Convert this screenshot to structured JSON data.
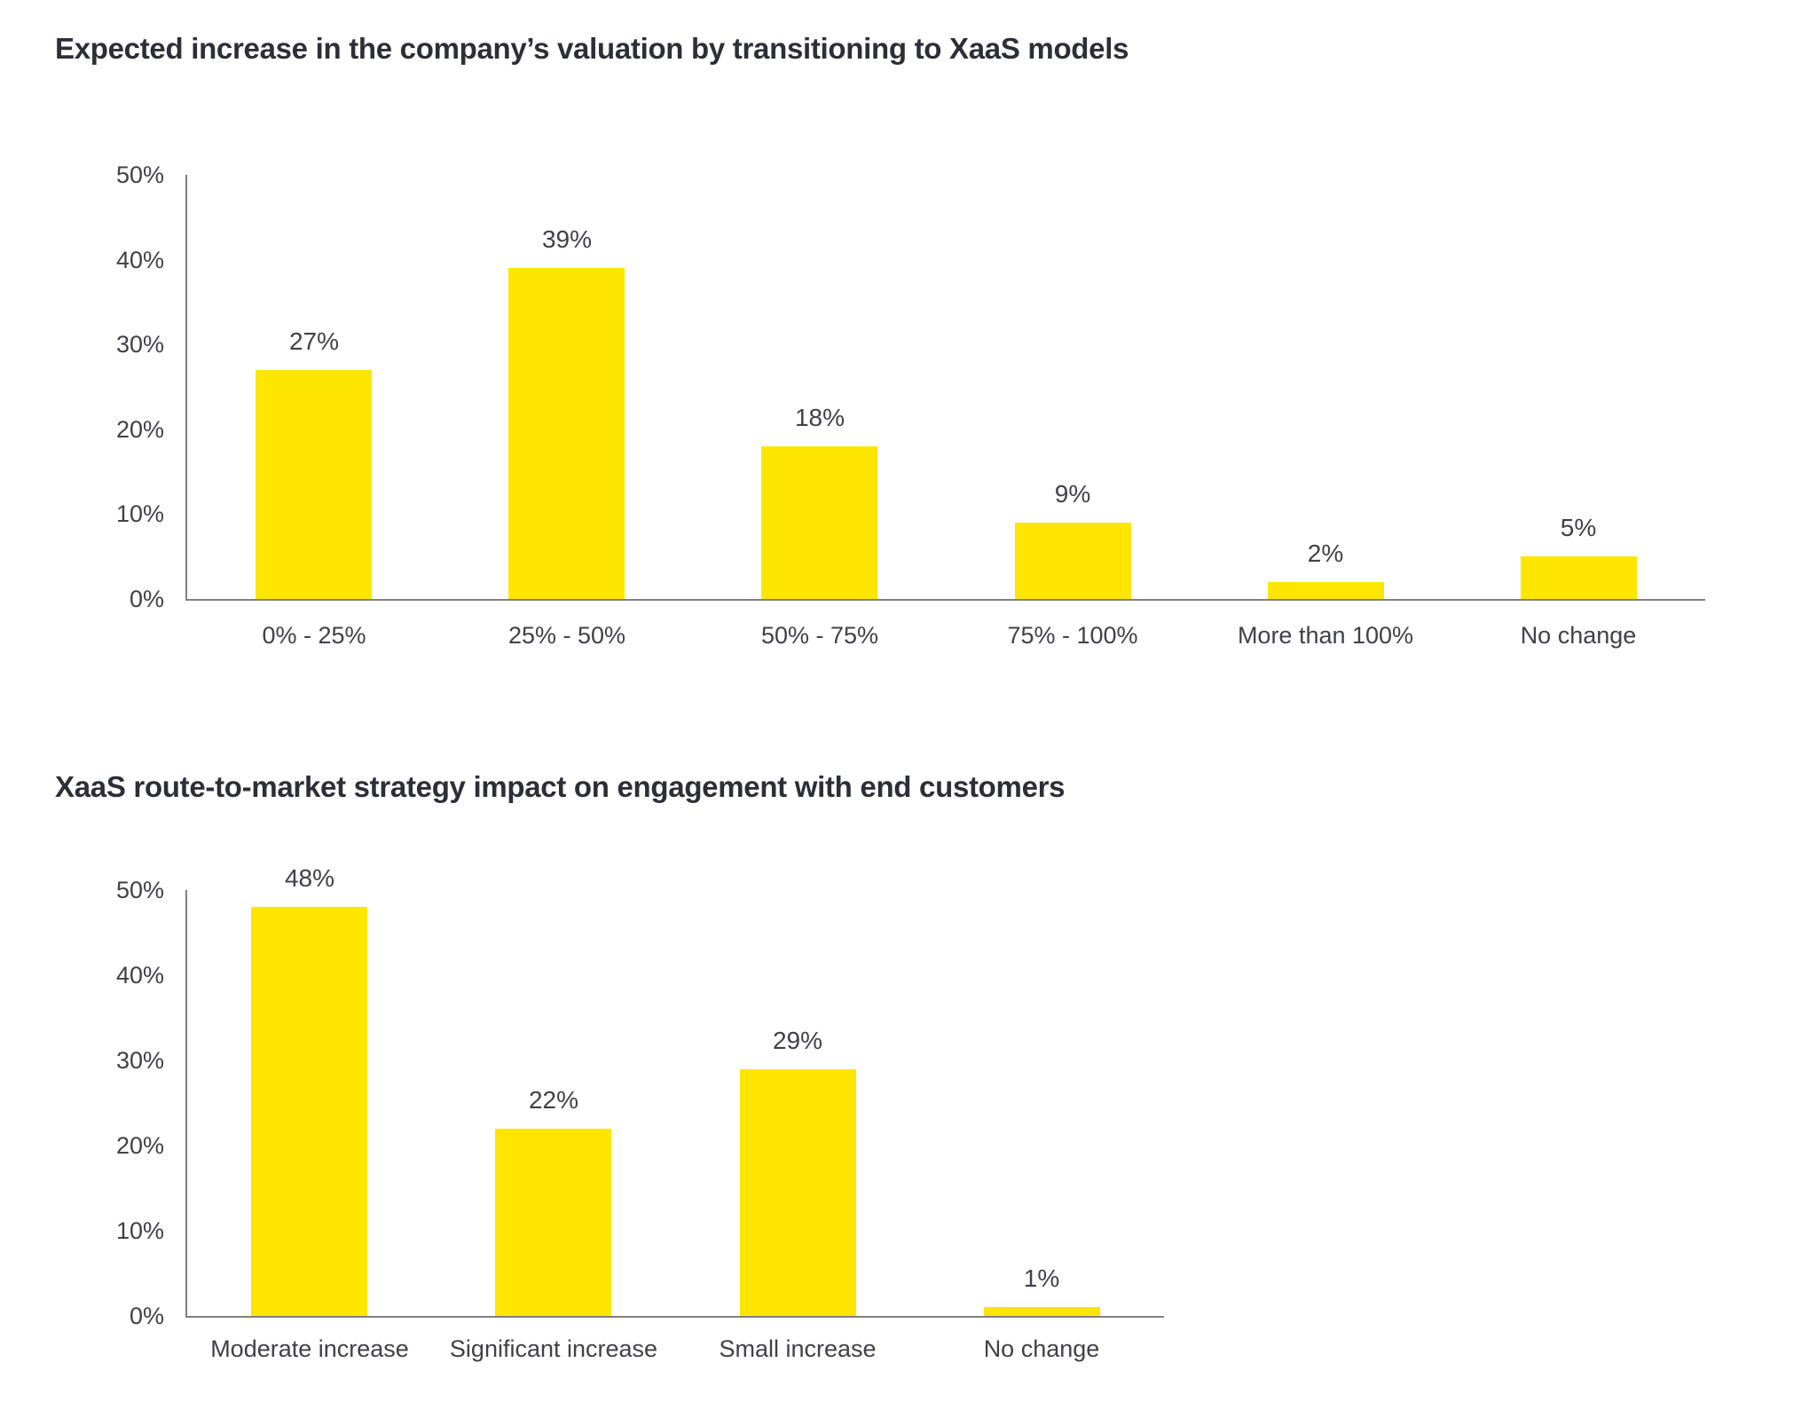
{
  "page": {
    "background": "#ffffff"
  },
  "colors": {
    "bar": "#ffe600",
    "title_text": "#2e2e38",
    "label_text": "#404049",
    "axis_line": "#808080"
  },
  "chart_data": [
    {
      "type": "bar",
      "title": "Expected increase in the company’s valuation by transitioning to XaaS models",
      "categories": [
        "0% - 25%",
        "25% - 50%",
        "50% - 75%",
        "75% - 100%",
        "More than 100%",
        "No change"
      ],
      "values": [
        27,
        39,
        18,
        9,
        2,
        5
      ],
      "value_labels": [
        "27%",
        "39%",
        "18%",
        "9%",
        "2%",
        "5%"
      ],
      "y_tick_labels": [
        "50%",
        "40%",
        "30%",
        "20%",
        "10%",
        "0%"
      ],
      "ylim": [
        0,
        50
      ],
      "xlabel": "",
      "ylabel": "",
      "grid": false,
      "legend": "none",
      "bar_color": "#ffe600"
    },
    {
      "type": "bar",
      "title": "XaaS route-to-market strategy impact on engagement with end customers",
      "categories": [
        "Moderate increase",
        "Significant increase",
        "Small increase",
        "No change"
      ],
      "values": [
        48,
        22,
        29,
        1
      ],
      "value_labels": [
        "48%",
        "22%",
        "29%",
        "1%"
      ],
      "y_tick_labels": [
        "50%",
        "40%",
        "30%",
        "20%",
        "10%",
        "0%"
      ],
      "ylim": [
        0,
        50
      ],
      "xlabel": "",
      "ylabel": "",
      "grid": false,
      "legend": "none",
      "bar_color": "#ffe600"
    }
  ]
}
